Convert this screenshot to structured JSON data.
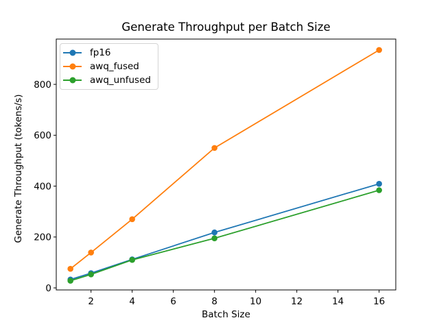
{
  "chart_data": {
    "type": "line",
    "title": "Generate Throughput per Batch Size",
    "xlabel": "Batch Size",
    "ylabel": "Generate Throughput (tokens/s)",
    "x": [
      1,
      2,
      4,
      8,
      16
    ],
    "series": [
      {
        "name": "fp16",
        "color": "#1f77b4",
        "values": [
          33,
          58,
          112,
          218,
          409
        ]
      },
      {
        "name": "awq_fused",
        "color": "#ff7f0e",
        "values": [
          75,
          139,
          270,
          550,
          935
        ]
      },
      {
        "name": "awq_unfused",
        "color": "#2ca02c",
        "values": [
          28,
          53,
          110,
          195,
          384
        ]
      }
    ],
    "x_ticks": [
      2,
      4,
      6,
      8,
      10,
      12,
      14,
      16
    ],
    "y_ticks": [
      0,
      200,
      400,
      600,
      800
    ],
    "xlim": [
      0.31,
      16.81
    ],
    "ylim": [
      -8,
      978
    ],
    "grid": false,
    "legend_position": "upper left",
    "marker": "o",
    "background": "#ffffff",
    "spine_color": "#000000"
  }
}
